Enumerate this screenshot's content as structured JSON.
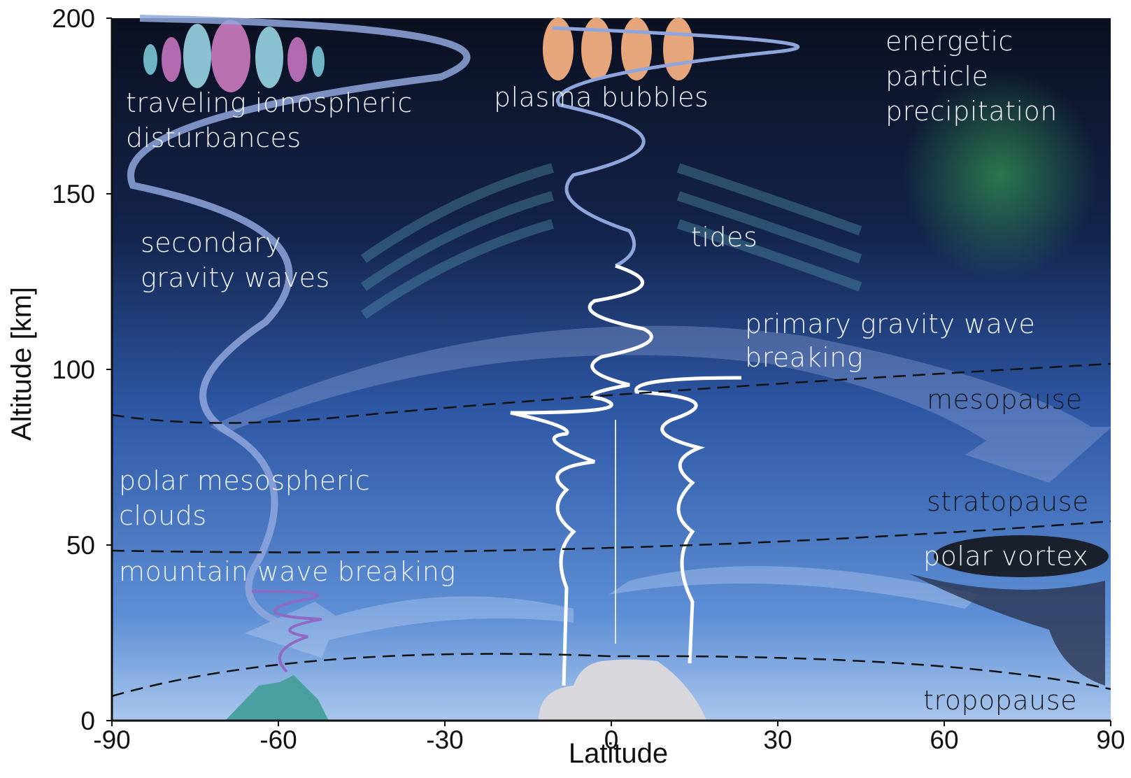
{
  "chart_data": {
    "type": "annotated",
    "xlabel": "Latitude",
    "ylabel": "Altitude [km]",
    "xlim": [
      -90,
      90
    ],
    "ylim": [
      0,
      200
    ],
    "xticks": [
      -90,
      -60,
      -30,
      0,
      30,
      60,
      90
    ],
    "yticks": [
      0,
      50,
      100,
      150,
      200
    ],
    "annotations": [
      [
        "traveling ionospheric",
        "disturbances"
      ],
      [
        "plasma bubbles"
      ],
      [
        "energetic",
        "particle",
        "precipitation"
      ],
      [
        "secondary",
        "gravity waves"
      ],
      [
        "tides"
      ],
      [
        "primary gravity wave",
        "breaking"
      ],
      [
        "mesopause"
      ],
      [
        "polar mesospheric",
        "clouds"
      ],
      [
        "stratopause"
      ],
      [
        "polar vortex"
      ],
      [
        "mountain wave breaking"
      ],
      [
        "tropopause"
      ]
    ]
  }
}
